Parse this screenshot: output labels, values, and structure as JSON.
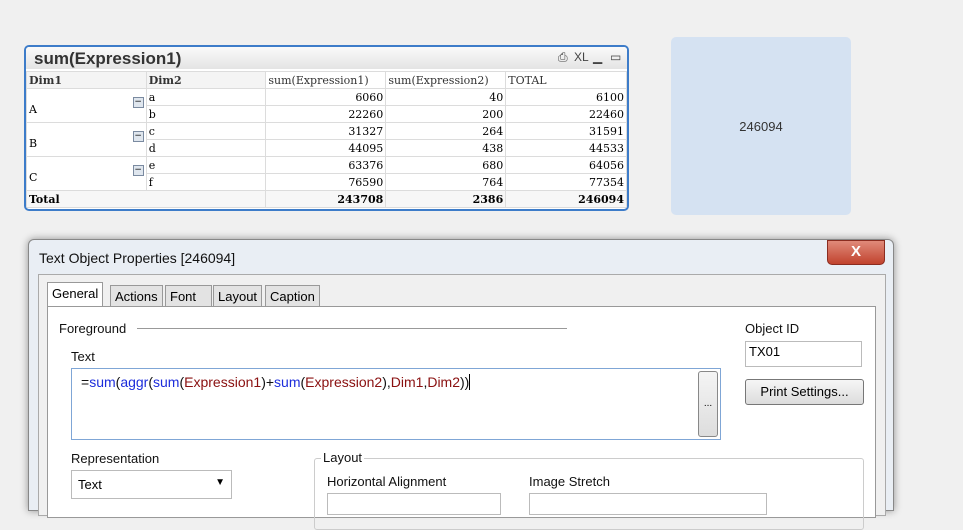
{
  "table": {
    "caption": "sum(Expression1)",
    "caption_icons": [
      "print-icon",
      "XL",
      "minimize-icon",
      "maximize-icon"
    ],
    "headers": [
      "Dim1",
      "Dim2",
      "sum(Expression1)",
      "sum(Expression2)",
      "TOTAL"
    ],
    "groups": [
      {
        "dim1": "A",
        "rows": [
          {
            "dim2": "a",
            "e1": "6060",
            "e2": "40",
            "total": "6100"
          },
          {
            "dim2": "b",
            "e1": "22260",
            "e2": "200",
            "total": "22460"
          }
        ]
      },
      {
        "dim1": "B",
        "rows": [
          {
            "dim2": "c",
            "e1": "31327",
            "e2": "264",
            "total": "31591"
          },
          {
            "dim2": "d",
            "e1": "44095",
            "e2": "438",
            "total": "44533"
          }
        ]
      },
      {
        "dim1": "C",
        "rows": [
          {
            "dim2": "e",
            "e1": "63376",
            "e2": "680",
            "total": "64056"
          },
          {
            "dim2": "f",
            "e1": "76590",
            "e2": "764",
            "total": "77354"
          }
        ]
      }
    ],
    "total": {
      "label": "Total",
      "e1": "243708",
      "e2": "2386",
      "total": "246094"
    },
    "collapse_glyph": "−"
  },
  "text_object": {
    "value": "246094",
    "bg": "#d5e2f2"
  },
  "dialog": {
    "title": "Text Object Properties [246094]",
    "close": "X",
    "tabs": [
      "General",
      "Actions",
      "Font",
      "Layout",
      "Caption"
    ],
    "active_tab": "General",
    "foreground": "Foreground",
    "text_label": "Text",
    "expression": [
      {
        "t": "=",
        "c": "p"
      },
      {
        "t": "sum",
        "c": "k"
      },
      {
        "t": "(",
        "c": "p"
      },
      {
        "t": "aggr",
        "c": "k"
      },
      {
        "t": "(",
        "c": "p"
      },
      {
        "t": "sum",
        "c": "k"
      },
      {
        "t": "(",
        "c": "p"
      },
      {
        "t": "Expression1",
        "c": "f"
      },
      {
        "t": ")+",
        "c": "p"
      },
      {
        "t": "sum",
        "c": "k"
      },
      {
        "t": "(",
        "c": "p"
      },
      {
        "t": "Expression2",
        "c": "f"
      },
      {
        "t": "),",
        "c": "p"
      },
      {
        "t": "Dim1",
        "c": "f"
      },
      {
        "t": ",",
        "c": "p"
      },
      {
        "t": "Dim2",
        "c": "f"
      },
      {
        "t": "))",
        "c": "p"
      }
    ],
    "ellipsis": "...",
    "object_id_label": "Object ID",
    "object_id": "TX01",
    "print_settings": "Print Settings...",
    "representation_label": "Representation",
    "representation": "Text",
    "layout_label": "Layout",
    "horizontal_alignment": "Horizontal Alignment",
    "image_stretch": "Image Stretch"
  }
}
